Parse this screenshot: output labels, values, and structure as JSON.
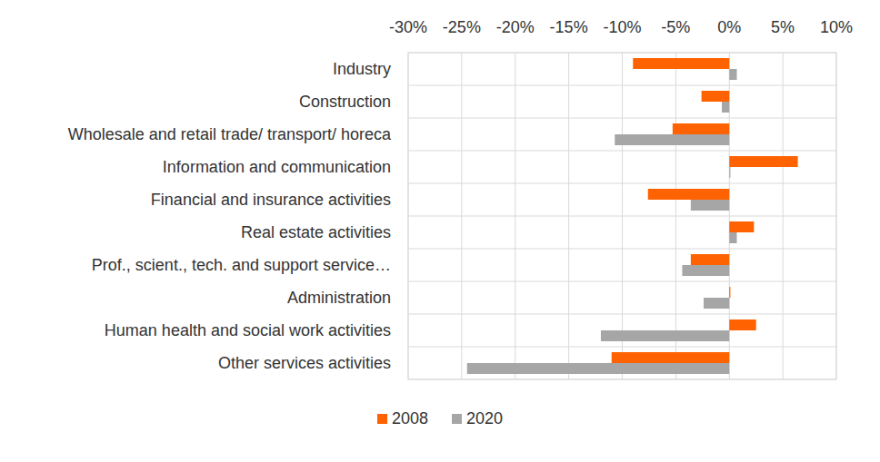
{
  "chart_data": {
    "type": "bar",
    "orientation": "horizontal",
    "grid": true,
    "legend": "bottom",
    "categories": [
      "Industry",
      "Construction",
      "Wholesale and retail trade/ transport/ horeca",
      "Information and communication",
      "Financial and insurance activities",
      "Real estate activities",
      "Prof., scient., tech. and support service…",
      "Administration",
      "Human health and social work activities",
      "Other services activities"
    ],
    "series": [
      {
        "name": "2008",
        "color": "#ff6200",
        "values": [
          -9.0,
          -2.6,
          -5.3,
          6.4,
          -7.6,
          2.3,
          -3.6,
          0.1,
          2.5,
          -11.0
        ]
      },
      {
        "name": "2020",
        "color": "#a6a6a6",
        "values": [
          0.7,
          -0.7,
          -10.7,
          0.1,
          -3.6,
          0.7,
          -4.4,
          -2.4,
          -12.0,
          -24.5
        ]
      }
    ],
    "xlim": [
      -30,
      10
    ],
    "xticks": [
      {
        "value": -30,
        "label": "-30%"
      },
      {
        "value": -25,
        "label": "-25%"
      },
      {
        "value": -20,
        "label": "-20%"
      },
      {
        "value": -15,
        "label": "-15%"
      },
      {
        "value": -10,
        "label": "-10%"
      },
      {
        "value": -5,
        "label": "-5%"
      },
      {
        "value": 0,
        "label": "0%"
      },
      {
        "value": 5,
        "label": "5%"
      },
      {
        "value": 10,
        "label": "10%"
      }
    ]
  }
}
